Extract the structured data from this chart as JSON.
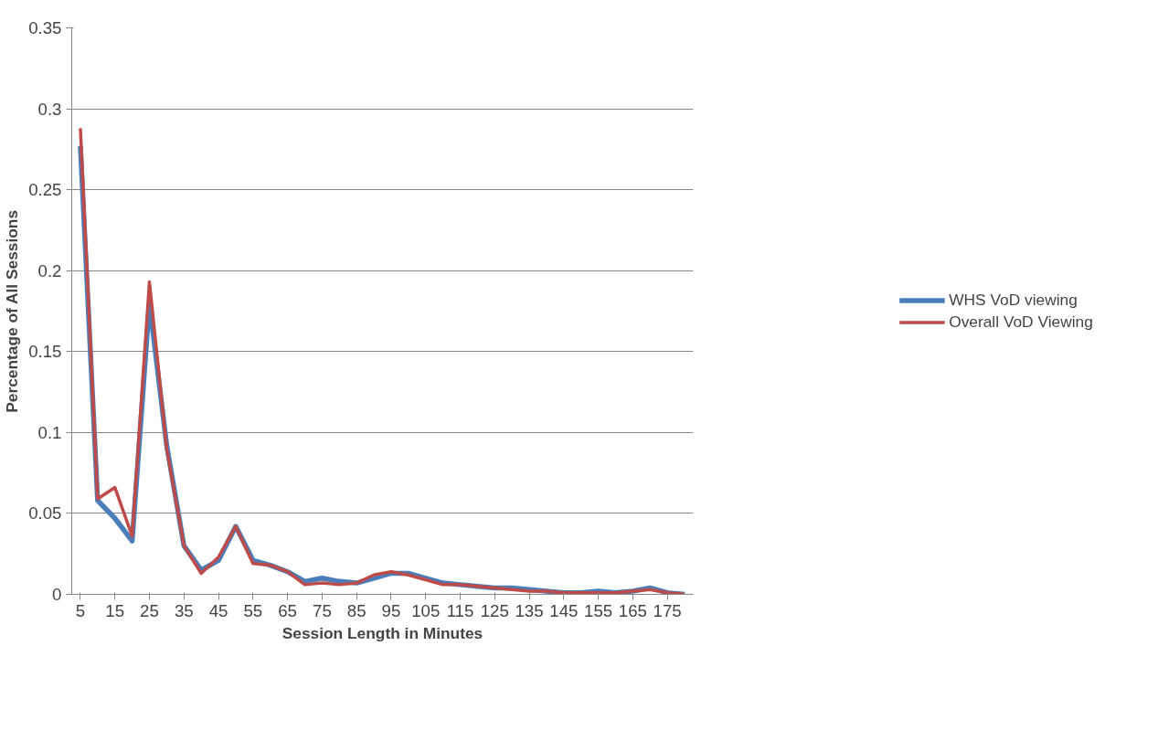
{
  "chart_data": {
    "type": "line",
    "xlabel": "Session Length in Minutes",
    "ylabel": "Percentage of All Sessions",
    "categories": [
      "5",
      null,
      "15",
      null,
      "25",
      null,
      "35",
      null,
      "45",
      null,
      "55",
      null,
      "65",
      null,
      "75",
      null,
      "85",
      null,
      "95",
      null,
      "105",
      null,
      "115",
      null,
      "125",
      null,
      "135",
      null,
      "145",
      null,
      "155",
      null,
      "165",
      null,
      "175",
      null
    ],
    "series": [
      {
        "name": "WHS VoD viewing",
        "color": "#4a7ebb",
        "values": [
          0.277,
          0.058,
          0.047,
          0.033,
          0.18,
          0.092,
          0.03,
          0.015,
          0.021,
          0.042,
          0.021,
          0.018,
          0.014,
          0.008,
          0.01,
          0.008,
          0.007,
          0.01,
          0.013,
          0.013,
          0.01,
          0.007,
          0.006,
          0.005,
          0.004,
          0.004,
          0.003,
          0.002,
          0.001,
          0.001,
          0.002,
          0.001,
          0.002,
          0.004,
          0.001,
          0.0
        ]
      },
      {
        "name": "Overall VoD Viewing",
        "color": "#be4b48",
        "values": [
          0.288,
          0.059,
          0.066,
          0.036,
          0.193,
          0.09,
          0.03,
          0.013,
          0.023,
          0.042,
          0.019,
          0.018,
          0.014,
          0.006,
          0.007,
          0.006,
          0.007,
          0.012,
          0.014,
          0.012,
          0.009,
          0.006,
          0.006,
          0.005,
          0.004,
          0.003,
          0.002,
          0.002,
          0.001,
          0.001,
          0.001,
          0.001,
          0.002,
          0.003,
          0.001,
          0.0
        ]
      }
    ],
    "ylim": [
      0,
      0.35
    ],
    "yticks": [
      0,
      0.05,
      0.1,
      0.15,
      0.2,
      0.25,
      0.3,
      0.35
    ],
    "grid": "y",
    "legend": "right",
    "marker": "none",
    "line_style": "solid"
  }
}
